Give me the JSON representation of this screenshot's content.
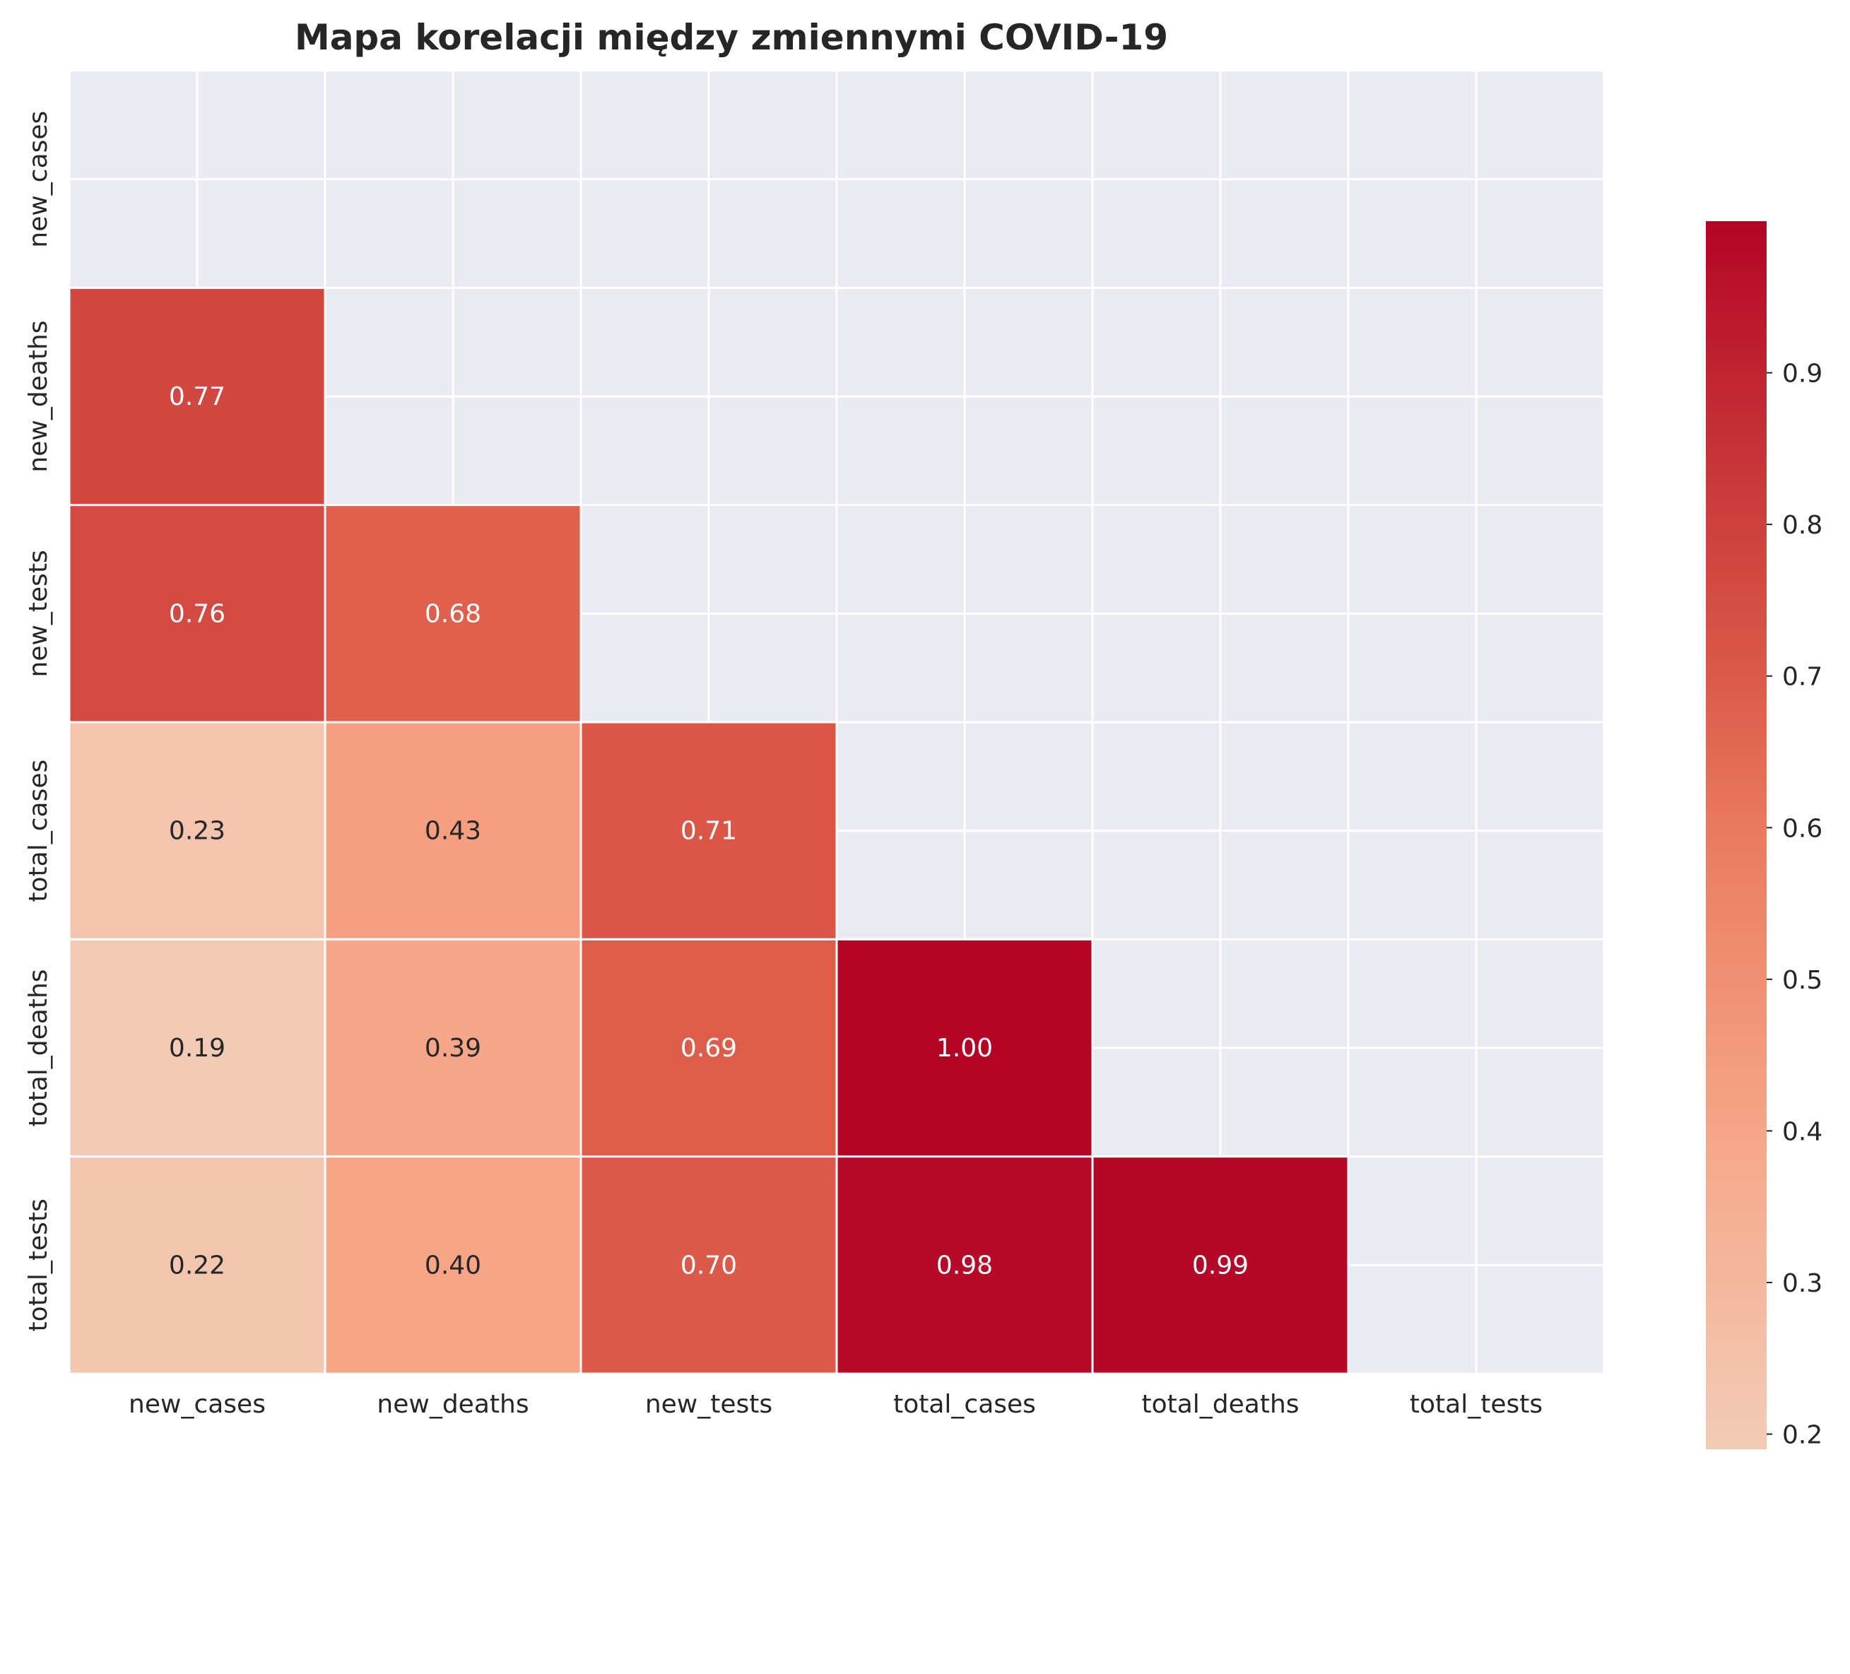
{
  "chart_data": {
    "type": "heatmap",
    "title": "Mapa korelacji między zmiennymi COVID-19",
    "xlabel": "",
    "ylabel": "",
    "variables": [
      "new_cases",
      "new_deaths",
      "new_tests",
      "total_cases",
      "total_deaths",
      "total_tests"
    ],
    "mask": "upper triangle including diagonal",
    "cells": [
      {
        "row": "new_deaths",
        "col": "new_cases",
        "value": 0.77,
        "label": "0.77"
      },
      {
        "row": "new_tests",
        "col": "new_cases",
        "value": 0.76,
        "label": "0.76"
      },
      {
        "row": "new_tests",
        "col": "new_deaths",
        "value": 0.68,
        "label": "0.68"
      },
      {
        "row": "total_cases",
        "col": "new_cases",
        "value": 0.23,
        "label": "0.23"
      },
      {
        "row": "total_cases",
        "col": "new_deaths",
        "value": 0.43,
        "label": "0.43"
      },
      {
        "row": "total_cases",
        "col": "new_tests",
        "value": 0.71,
        "label": "0.71"
      },
      {
        "row": "total_deaths",
        "col": "new_cases",
        "value": 0.19,
        "label": "0.19"
      },
      {
        "row": "total_deaths",
        "col": "new_deaths",
        "value": 0.39,
        "label": "0.39"
      },
      {
        "row": "total_deaths",
        "col": "new_tests",
        "value": 0.69,
        "label": "0.69"
      },
      {
        "row": "total_deaths",
        "col": "total_cases",
        "value": 1.0,
        "label": "1.00"
      },
      {
        "row": "total_tests",
        "col": "new_cases",
        "value": 0.22,
        "label": "0.22"
      },
      {
        "row": "total_tests",
        "col": "new_deaths",
        "value": 0.4,
        "label": "0.40"
      },
      {
        "row": "total_tests",
        "col": "new_tests",
        "value": 0.7,
        "label": "0.70"
      },
      {
        "row": "total_tests",
        "col": "total_cases",
        "value": 0.98,
        "label": "0.98"
      },
      {
        "row": "total_tests",
        "col": "total_deaths",
        "value": 0.99,
        "label": "0.99"
      }
    ],
    "colorbar": {
      "range": [
        0.19,
        1.0
      ],
      "ticks": [
        "0.2",
        "0.3",
        "0.4",
        "0.5",
        "0.6",
        "0.7",
        "0.8",
        "0.9"
      ],
      "colormap": "coolwarm (upper half)",
      "color_low": "#f2cbb7",
      "color_high": "#b40426"
    },
    "grid": true,
    "background_color": "#eaeaf2"
  }
}
